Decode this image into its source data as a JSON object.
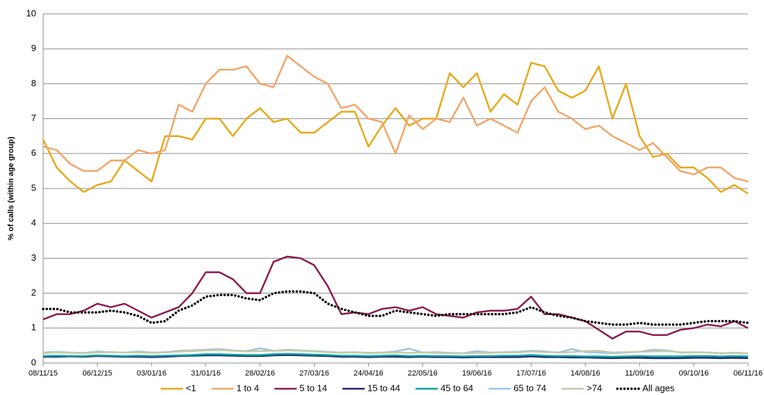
{
  "chart_data": {
    "type": "line",
    "y_label": "% of calls (within age group)",
    "categories": [
      "08/11/15",
      null,
      null,
      null,
      "06/12/15",
      null,
      null,
      null,
      "03/01/16",
      null,
      null,
      null,
      "31/01/16",
      null,
      null,
      null,
      "28/02/16",
      null,
      null,
      null,
      "27/03/16",
      null,
      null,
      null,
      "24/04/16",
      null,
      null,
      null,
      "22/05/16",
      null,
      null,
      null,
      "19/06/16",
      null,
      null,
      null,
      "17/07/16",
      null,
      null,
      null,
      "14/08/16",
      null,
      null,
      null,
      "11/09/16",
      null,
      null,
      null,
      "09/10/16",
      null,
      null,
      null,
      "06/11/16"
    ],
    "ylim": [
      0,
      10
    ],
    "yticks": [
      0,
      1,
      2,
      3,
      4,
      5,
      6,
      7,
      8,
      9,
      10
    ],
    "grid": true,
    "series": [
      {
        "name": "<1",
        "color": "#e8a819",
        "style": "solid",
        "values": [
          6.4,
          5.6,
          5.2,
          4.9,
          5.1,
          5.2,
          5.8,
          5.5,
          5.2,
          6.5,
          6.5,
          6.4,
          7.0,
          7.0,
          6.5,
          7.0,
          7.3,
          6.9,
          7.0,
          6.6,
          6.6,
          6.9,
          7.2,
          7.2,
          6.2,
          6.8,
          7.3,
          6.8,
          7.0,
          7.0,
          8.3,
          7.9,
          8.3,
          7.2,
          7.7,
          7.4,
          8.6,
          8.5,
          7.8,
          7.6,
          7.8,
          8.5,
          7.0,
          8.0,
          6.5,
          5.9,
          6.0,
          5.6,
          5.6,
          5.3,
          4.9,
          5.1,
          4.85
        ]
      },
      {
        "name": "1 to 4",
        "color": "#f5a468",
        "style": "solid",
        "values": [
          6.2,
          6.1,
          5.7,
          5.5,
          5.5,
          5.8,
          5.8,
          6.1,
          6.0,
          6.1,
          7.4,
          7.2,
          8.0,
          8.4,
          8.4,
          8.5,
          8.0,
          7.9,
          8.8,
          8.5,
          8.2,
          8.0,
          7.3,
          7.4,
          7.0,
          6.9,
          6.0,
          7.1,
          6.7,
          7.0,
          6.9,
          7.6,
          6.8,
          7.0,
          6.8,
          6.6,
          7.5,
          7.9,
          7.2,
          7.0,
          6.7,
          6.8,
          6.5,
          6.3,
          6.1,
          6.3,
          5.9,
          5.5,
          5.4,
          5.6,
          5.6,
          5.3,
          5.2
        ]
      },
      {
        "name": "5 to 14",
        "color": "#8c1a4b",
        "style": "solid",
        "values": [
          1.25,
          1.4,
          1.4,
          1.5,
          1.7,
          1.6,
          1.7,
          1.5,
          1.3,
          1.45,
          1.6,
          2.0,
          2.6,
          2.6,
          2.4,
          2.0,
          2.0,
          2.9,
          3.05,
          3.0,
          2.8,
          2.2,
          1.4,
          1.45,
          1.4,
          1.55,
          1.6,
          1.5,
          1.6,
          1.4,
          1.35,
          1.3,
          1.45,
          1.5,
          1.5,
          1.55,
          1.9,
          1.4,
          1.4,
          1.3,
          1.2,
          0.95,
          0.7,
          0.9,
          0.9,
          0.8,
          0.8,
          0.95,
          1.0,
          1.1,
          1.05,
          1.2,
          1.0
        ]
      },
      {
        "name": "15 to 44",
        "color": "#1f1f6e",
        "style": "solid",
        "values": [
          0.18,
          0.18,
          0.19,
          0.18,
          0.2,
          0.19,
          0.18,
          0.18,
          0.17,
          0.18,
          0.2,
          0.21,
          0.22,
          0.22,
          0.21,
          0.2,
          0.2,
          0.22,
          0.23,
          0.22,
          0.21,
          0.2,
          0.18,
          0.18,
          0.17,
          0.18,
          0.18,
          0.17,
          0.18,
          0.17,
          0.17,
          0.16,
          0.17,
          0.17,
          0.17,
          0.17,
          0.19,
          0.17,
          0.17,
          0.16,
          0.16,
          0.15,
          0.14,
          0.15,
          0.15,
          0.14,
          0.14,
          0.14,
          0.15,
          0.15,
          0.14,
          0.15,
          0.14
        ]
      },
      {
        "name": "45 to 64",
        "color": "#00a99d",
        "style": "solid",
        "values": [
          0.2,
          0.21,
          0.2,
          0.2,
          0.22,
          0.21,
          0.2,
          0.21,
          0.2,
          0.21,
          0.22,
          0.23,
          0.25,
          0.25,
          0.24,
          0.23,
          0.23,
          0.25,
          0.26,
          0.25,
          0.24,
          0.23,
          0.21,
          0.21,
          0.2,
          0.21,
          0.22,
          0.2,
          0.21,
          0.2,
          0.2,
          0.19,
          0.2,
          0.2,
          0.21,
          0.21,
          0.23,
          0.21,
          0.2,
          0.2,
          0.19,
          0.19,
          0.18,
          0.19,
          0.2,
          0.19,
          0.19,
          0.19,
          0.2,
          0.2,
          0.19,
          0.2,
          0.19
        ]
      },
      {
        "name": "65 to 74",
        "color": "#9dc3e6",
        "style": "solid",
        "values": [
          0.3,
          0.32,
          0.3,
          0.29,
          0.33,
          0.31,
          0.3,
          0.33,
          0.3,
          0.31,
          0.35,
          0.36,
          0.38,
          0.4,
          0.36,
          0.34,
          0.42,
          0.35,
          0.38,
          0.36,
          0.34,
          0.32,
          0.3,
          0.31,
          0.29,
          0.3,
          0.33,
          0.41,
          0.3,
          0.31,
          0.29,
          0.28,
          0.34,
          0.3,
          0.31,
          0.32,
          0.35,
          0.33,
          0.3,
          0.4,
          0.31,
          0.3,
          0.28,
          0.3,
          0.32,
          0.38,
          0.36,
          0.3,
          0.31,
          0.3,
          0.28,
          0.29,
          0.28
        ]
      },
      {
        "name": ">74",
        "color": "#c8c9a6",
        "style": "solid",
        "values": [
          0.28,
          0.3,
          0.29,
          0.28,
          0.3,
          0.31,
          0.3,
          0.3,
          0.29,
          0.3,
          0.33,
          0.34,
          0.36,
          0.37,
          0.35,
          0.33,
          0.34,
          0.35,
          0.36,
          0.35,
          0.33,
          0.31,
          0.29,
          0.3,
          0.28,
          0.29,
          0.3,
          0.29,
          0.3,
          0.29,
          0.28,
          0.27,
          0.29,
          0.29,
          0.3,
          0.3,
          0.33,
          0.31,
          0.3,
          0.31,
          0.34,
          0.35,
          0.3,
          0.31,
          0.32,
          0.33,
          0.34,
          0.31,
          0.3,
          0.3,
          0.28,
          0.29,
          0.28
        ]
      },
      {
        "name": "All ages",
        "color": "#000000",
        "style": "dotted",
        "values": [
          1.55,
          1.55,
          1.45,
          1.45,
          1.45,
          1.5,
          1.45,
          1.35,
          1.15,
          1.2,
          1.5,
          1.65,
          1.9,
          1.95,
          1.95,
          1.85,
          1.8,
          2.0,
          2.05,
          2.05,
          2.0,
          1.7,
          1.55,
          1.45,
          1.35,
          1.35,
          1.5,
          1.45,
          1.4,
          1.35,
          1.4,
          1.4,
          1.4,
          1.4,
          1.4,
          1.45,
          1.6,
          1.45,
          1.35,
          1.3,
          1.2,
          1.15,
          1.1,
          1.1,
          1.15,
          1.1,
          1.1,
          1.1,
          1.15,
          1.2,
          1.2,
          1.2,
          1.15
        ]
      }
    ]
  }
}
